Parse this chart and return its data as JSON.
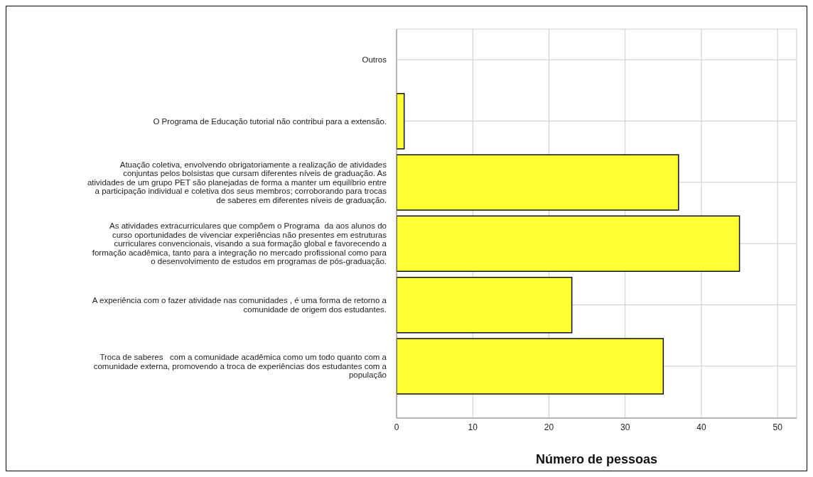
{
  "chart_data": {
    "type": "bar",
    "orientation": "horizontal",
    "xlabel": "Número de pessoas",
    "categories": [
      "Outros",
      "O Programa de Educação tutorial não contribui para a extensão.",
      "Atuação coletiva, envolvendo obrigatoriamente a realização de atividades\nconjuntas pelos bolsistas que cursam diferentes níveis de graduação. As\natividades de um grupo PET são planejadas de forma a manter um equilíbrio entre\na participação individual e coletiva dos seus membros; corroborando para trocas\nde saberes em diferentes níveis de graduação.",
      "As atividades extracurriculares que compõem o Programa  da aos alunos do\ncurso oportunidades de vivenciar experiências não presentes em estruturas\ncurriculares convencionais, visando a sua formação global e favorecendo a\nformação acadêmica, tanto para a integração no mercado profissional como para\no desenvolvimento de estudos em programas de pós-graduação.",
      "A experiência com o fazer atividade nas comunidades , é uma forma de retorno a\ncomunidade de origem dos estudantes.",
      "Troca de saberes   com a comunidade acadêmica como um todo quanto com a\ncomunidade externa, promovendo a troca de experiências dos estudantes com a\npopulação"
    ],
    "values": [
      0,
      1,
      37,
      45,
      23,
      35
    ],
    "color": "#ffff33",
    "xlim": [
      0,
      52.5
    ],
    "xticks": [
      0,
      10,
      20,
      30,
      40,
      50
    ],
    "grid": true
  }
}
